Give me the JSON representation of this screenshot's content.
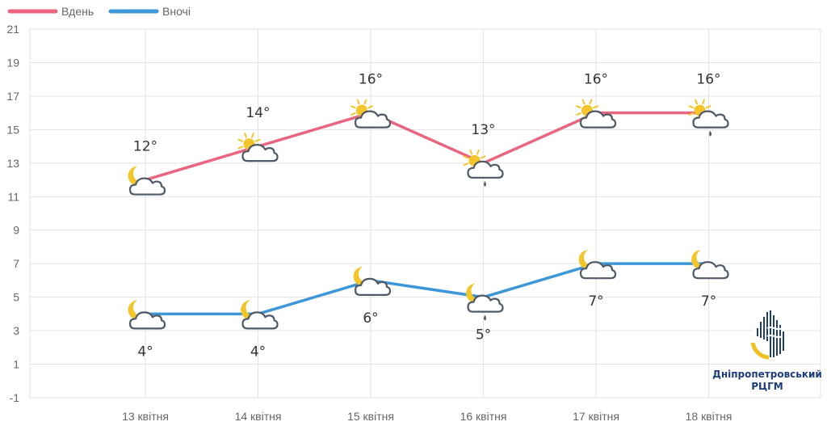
{
  "chart_data": {
    "type": "line",
    "categories": [
      "13 квітня",
      "14 квітня",
      "15 квітня",
      "16 квітня",
      "17 квітня",
      "18 квітня"
    ],
    "series": [
      {
        "name": "Вдень",
        "color": "#e8667f",
        "values": [
          12,
          14,
          16,
          13,
          16,
          16
        ],
        "labels": [
          "12°",
          "14°",
          "16°",
          "13°",
          "16°",
          "16°"
        ],
        "icons": [
          "moon-cloud-icon",
          "sun-cloud-icon",
          "sun-cloud-icon",
          "sun-cloud-rain-icon",
          "sun-cloud-icon",
          "sun-cloud-rain-icon"
        ]
      },
      {
        "name": "Вночі",
        "color": "#3d97d6",
        "values": [
          4,
          4,
          6,
          5,
          7,
          7
        ],
        "labels": [
          "4°",
          "4°",
          "6°",
          "5°",
          "7°",
          "7°"
        ],
        "icons": [
          "moon-cloud-icon",
          "moon-cloud-icon",
          "moon-cloud-icon",
          "moon-cloud-rain-icon",
          "moon-cloud-icon",
          "moon-cloud-icon"
        ]
      }
    ],
    "yticks": [
      -1,
      1,
      3,
      5,
      7,
      9,
      11,
      13,
      15,
      17,
      19,
      21
    ],
    "ylim": [
      -1,
      21
    ],
    "grid": true,
    "legend_position": "top-left",
    "title": "",
    "xlabel": "",
    "ylabel": ""
  },
  "logo": {
    "line1": "Дніпропетровський",
    "line2": "РЦГМ",
    "icon": "drop-logo-icon"
  }
}
